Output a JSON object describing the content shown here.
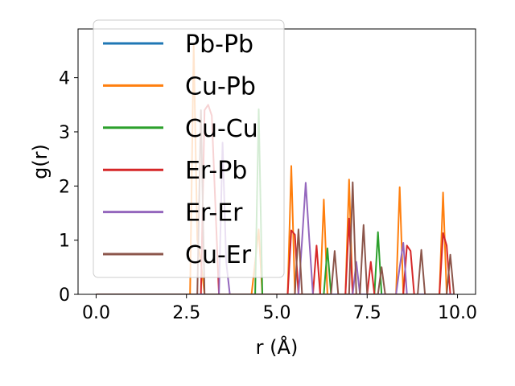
{
  "chart_data": {
    "type": "line",
    "title": "",
    "xlabel": "r (Å)",
    "ylabel": "g(r)",
    "xlim": [
      -0.5,
      10.5
    ],
    "ylim": [
      0,
      4.9
    ],
    "xticks": [
      0.0,
      2.5,
      5.0,
      7.5,
      10.0
    ],
    "xtick_labels": [
      "0.0",
      "2.5",
      "5.0",
      "7.5",
      "10.0"
    ],
    "yticks": [
      0,
      1,
      2,
      3,
      4
    ],
    "ytick_labels": [
      "0",
      "1",
      "2",
      "3",
      "4"
    ],
    "grid": false,
    "legend_position": "upper-left",
    "series": [
      {
        "name": "Pb-Pb",
        "color": "#1f77b4",
        "x": [
          0,
          9.9
        ],
        "y": [
          0,
          0
        ]
      },
      {
        "name": "Cu-Pb",
        "color": "#ff7f0e",
        "x": [
          0,
          2.6,
          2.7,
          2.8,
          2.9,
          3.0,
          4.3,
          4.4,
          4.5,
          4.6,
          5.3,
          5.4,
          5.5,
          6.2,
          6.3,
          6.4,
          6.9,
          7.0,
          7.1,
          8.3,
          8.4,
          8.5,
          9.5,
          9.6,
          9.7,
          9.9
        ],
        "y": [
          0,
          0,
          4.6,
          1.0,
          0.6,
          0,
          0,
          0.6,
          1.2,
          0,
          0,
          2.37,
          0,
          0,
          1.75,
          0,
          0,
          2.12,
          0,
          0,
          1.98,
          0,
          0,
          1.88,
          0,
          0
        ]
      },
      {
        "name": "Cu-Cu",
        "color": "#2ca02c",
        "x": [
          0,
          4.4,
          4.5,
          4.6,
          6.3,
          6.4,
          6.5,
          7.7,
          7.8,
          7.9,
          9.9
        ],
        "y": [
          0,
          0,
          3.42,
          0,
          0,
          0.85,
          0,
          0,
          1.15,
          0,
          0
        ]
      },
      {
        "name": "Er-Pb",
        "color": "#d62728",
        "x": [
          0,
          2.9,
          3.0,
          3.1,
          3.2,
          3.4,
          5.3,
          5.4,
          5.5,
          5.6,
          5.7,
          6.0,
          6.1,
          6.2,
          6.9,
          7.0,
          7.1,
          7.2,
          7.5,
          7.6,
          7.7,
          8.5,
          8.6,
          8.7,
          8.8,
          9.5,
          9.6,
          9.7,
          9.8,
          9.9
        ],
        "y": [
          0,
          0,
          3.4,
          3.5,
          3.3,
          0,
          0,
          1.18,
          1.1,
          0,
          0,
          0,
          0.9,
          0,
          0,
          1.4,
          0,
          0,
          0,
          0.6,
          0,
          0,
          0.9,
          0.8,
          0,
          0,
          1.13,
          0.9,
          0,
          0
        ]
      },
      {
        "name": "Er-Er",
        "color": "#9467bd",
        "x": [
          0,
          3.4,
          3.5,
          3.6,
          3.7,
          5.6,
          5.7,
          5.8,
          5.9,
          6.0,
          7.1,
          7.2,
          7.3,
          8.3,
          8.4,
          8.5,
          8.6,
          9.9
        ],
        "y": [
          0,
          0,
          2.8,
          0.6,
          0,
          0,
          1.0,
          2.06,
          1.0,
          0,
          0,
          0.6,
          0,
          0,
          0.5,
          0.95,
          0,
          0
        ]
      },
      {
        "name": "Cu-Er",
        "color": "#8c564b",
        "x": [
          0,
          2.8,
          2.9,
          3.0,
          3.5,
          5.5,
          5.6,
          5.7,
          6.5,
          6.6,
          6.7,
          7.0,
          7.1,
          7.2,
          7.3,
          7.4,
          7.5,
          7.6,
          7.8,
          7.9,
          8.0,
          8.9,
          9.0,
          9.1,
          9.7,
          9.8,
          9.9
        ],
        "y": [
          0,
          0,
          3.4,
          0,
          0,
          0,
          1.2,
          0,
          0,
          0.8,
          0,
          0,
          2.07,
          0,
          0,
          1.28,
          0,
          0,
          0,
          0.5,
          0,
          0,
          0.82,
          0,
          0,
          0.73,
          0
        ]
      }
    ]
  }
}
